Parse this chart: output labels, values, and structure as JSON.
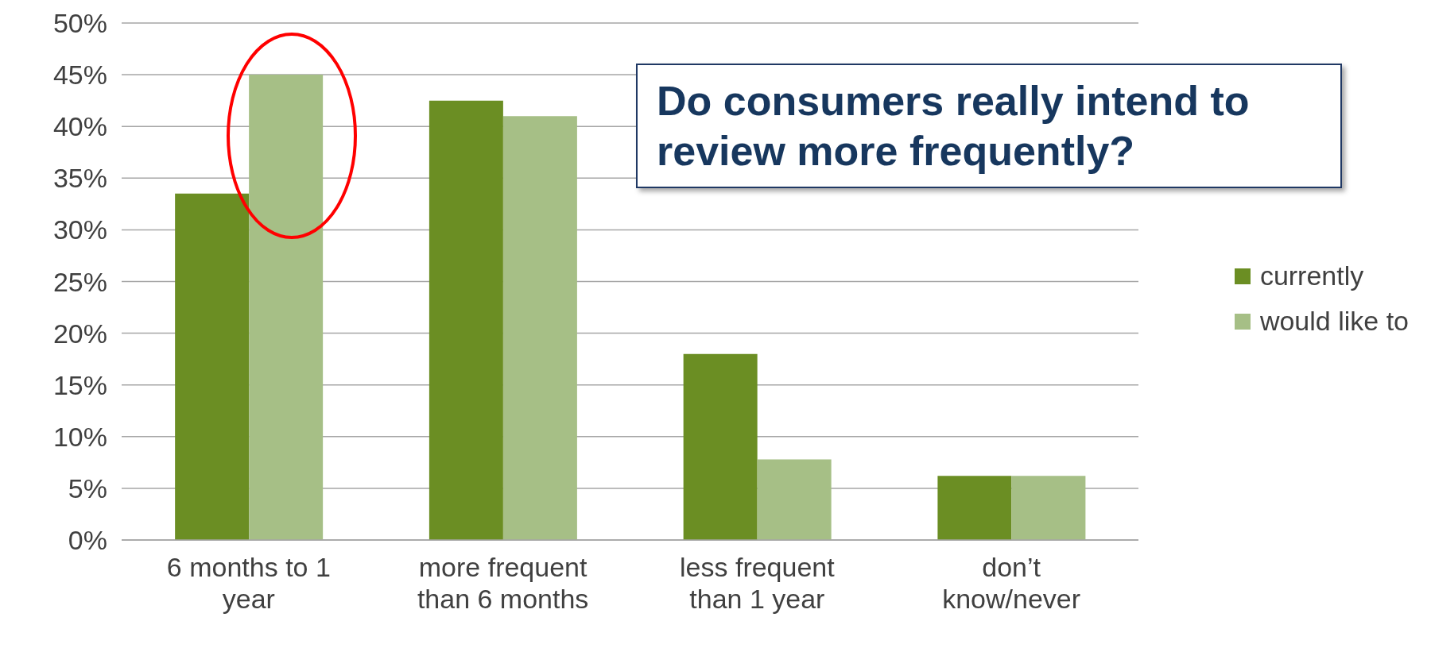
{
  "chart_data": {
    "type": "bar",
    "categories": [
      "6 months to 1 year",
      "more frequent than 6 months",
      "less frequent than 1 year",
      "don’t know/never"
    ],
    "series": [
      {
        "name": "currently",
        "color": "#6b8e23",
        "values": [
          33.5,
          42.5,
          18,
          6.2
        ]
      },
      {
        "name": "would like to",
        "color": "#a6bf86",
        "values": [
          45,
          41,
          7.8,
          6.2
        ]
      }
    ],
    "ylim": [
      0,
      50
    ],
    "yticks": [
      {
        "value": 0,
        "label": "0%"
      },
      {
        "value": 5,
        "label": "5%"
      },
      {
        "value": 10,
        "label": "10%"
      },
      {
        "value": 15,
        "label": "15%"
      },
      {
        "value": 20,
        "label": "20%"
      },
      {
        "value": 25,
        "label": "25%"
      },
      {
        "value": 30,
        "label": "30%"
      },
      {
        "value": 35,
        "label": "35%"
      },
      {
        "value": 40,
        "label": "40%"
      },
      {
        "value": 45,
        "label": "45%"
      },
      {
        "value": 50,
        "label": "50%"
      }
    ],
    "grid": "y",
    "legend": "right",
    "annotations": [
      "Do consumers really intend to review more frequently?"
    ]
  }
}
